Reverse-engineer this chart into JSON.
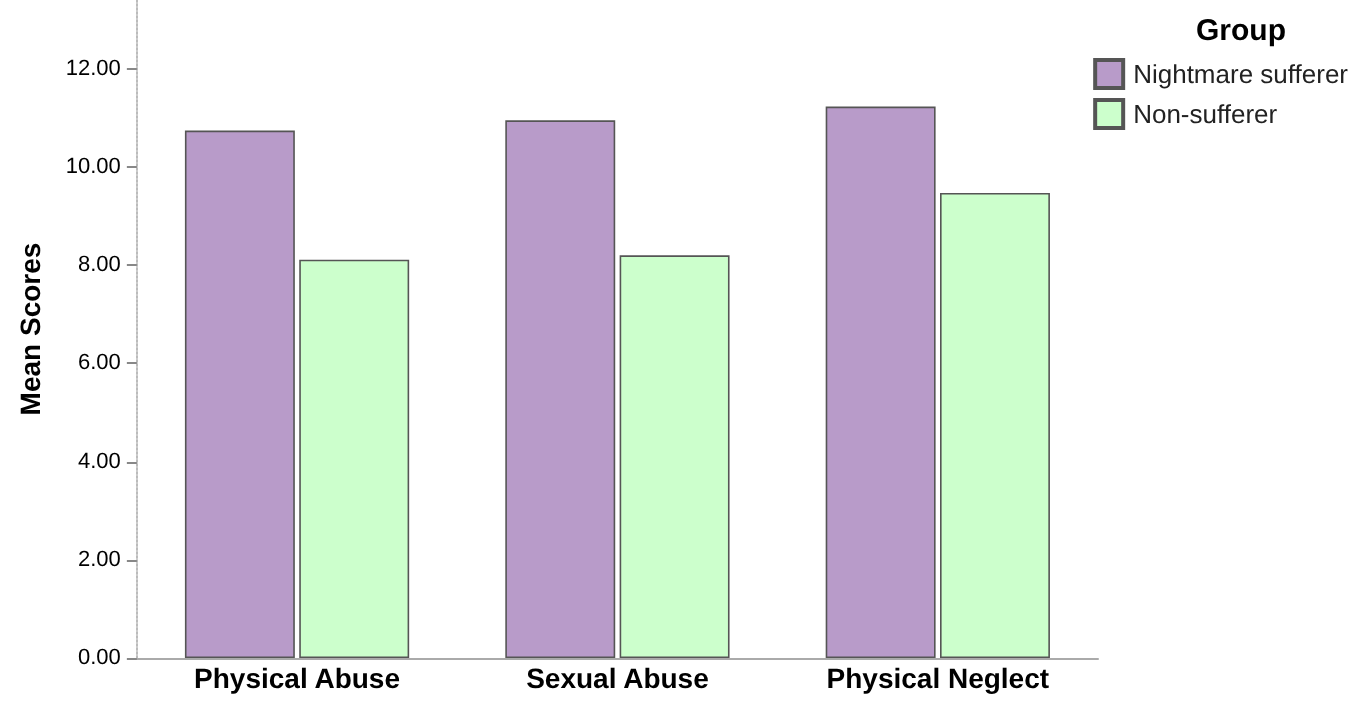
{
  "chart_data": {
    "type": "bar",
    "ylabel": "Mean Scores",
    "legend_title": "Group",
    "categories": [
      "Physical Abuse",
      "Sexual Abuse",
      "Physical Neglect"
    ],
    "series": [
      {
        "name": "Nightmare sufferer",
        "color": "#b89bc9",
        "values": [
          10.74,
          10.95,
          11.23
        ]
      },
      {
        "name": "Non-sufferer",
        "color": "#ccffcc",
        "values": [
          8.11,
          8.2,
          9.47
        ]
      }
    ],
    "ylim": [
      0,
      13.4
    ],
    "yticks": [
      {
        "value": 0,
        "label": "0.00"
      },
      {
        "value": 2,
        "label": "2.00"
      },
      {
        "value": 4,
        "label": "4.00"
      },
      {
        "value": 6,
        "label": "6.00"
      },
      {
        "value": 8,
        "label": "8.00"
      },
      {
        "value": 10,
        "label": "10.00"
      },
      {
        "value": 12,
        "label": "12.00"
      }
    ],
    "grid": false,
    "legend": "top right"
  }
}
